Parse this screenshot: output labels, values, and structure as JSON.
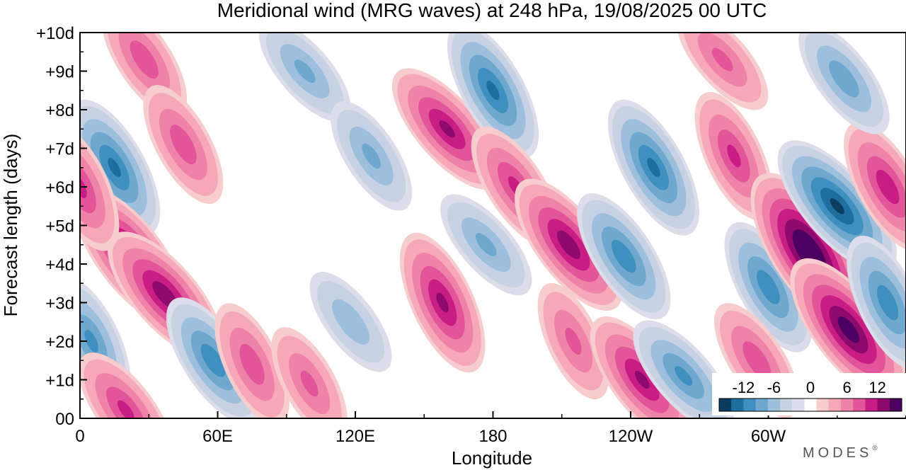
{
  "chart_data": {
    "type": "heatmap",
    "title": "Meridional wind (MRG waves) at  248 hPa,  19/08/2025  00 UTC",
    "xlabel": "Longitude",
    "ylabel": "Forecast length (days)",
    "x_ticks": [
      "0",
      "60E",
      "120E",
      "180",
      "120W",
      "60W"
    ],
    "x_tick_values": [
      0,
      60,
      120,
      180,
      240,
      300
    ],
    "xlim": [
      0,
      360
    ],
    "y_ticks": [
      "00",
      "+1d",
      "+2d",
      "+3d",
      "+4d",
      "+5d",
      "+6d",
      "+7d",
      "+8d",
      "+9d",
      "+10d"
    ],
    "ylim": [
      0,
      10
    ],
    "colorbar": {
      "labels": [
        "-12",
        "-6",
        "0",
        "6",
        "12"
      ],
      "levels": [
        -15,
        -12,
        -10,
        -8,
        -6,
        -4,
        -2,
        -1,
        1,
        2,
        4,
        6,
        8,
        10,
        12,
        15
      ],
      "colors": [
        "#0b3d5f",
        "#1f6e9e",
        "#3f8fbf",
        "#6fa8cf",
        "#9dbfdc",
        "#c6d2e4",
        "#dcdcea",
        "#ffffff",
        "#f7cccc",
        "#f6a8b8",
        "#ee82a8",
        "#e3559a",
        "#c81e84",
        "#8e0a6e",
        "#4b0060"
      ]
    },
    "anomalies": [
      {
        "lon": 5,
        "day": 2.0,
        "value": -8
      },
      {
        "lon": 15,
        "day": 6.5,
        "value": -10
      },
      {
        "lon": 28,
        "day": 9.3,
        "value": 7
      },
      {
        "lon": 22,
        "day": 4.2,
        "value": 12
      },
      {
        "lon": 37,
        "day": 3.2,
        "value": 11
      },
      {
        "lon": 0,
        "day": 6.0,
        "value": 8
      },
      {
        "lon": 45,
        "day": 7.1,
        "value": 7
      },
      {
        "lon": 58,
        "day": 1.5,
        "value": -9
      },
      {
        "lon": 20,
        "day": 0.2,
        "value": 8
      },
      {
        "lon": 98,
        "day": 9.0,
        "value": -6
      },
      {
        "lon": 75,
        "day": 1.4,
        "value": 7
      },
      {
        "lon": 100,
        "day": 0.9,
        "value": 6
      },
      {
        "lon": 127,
        "day": 6.8,
        "value": -6
      },
      {
        "lon": 118,
        "day": 2.5,
        "value": -5
      },
      {
        "lon": 160,
        "day": 7.5,
        "value": 10
      },
      {
        "lon": 158,
        "day": 3.0,
        "value": 10
      },
      {
        "lon": 180,
        "day": 8.5,
        "value": -10
      },
      {
        "lon": 190,
        "day": 6.0,
        "value": 8
      },
      {
        "lon": 213,
        "day": 4.5,
        "value": 11
      },
      {
        "lon": 177,
        "day": 4.5,
        "value": -6
      },
      {
        "lon": 215,
        "day": 2.0,
        "value": 6
      },
      {
        "lon": 250,
        "day": 6.5,
        "value": -10
      },
      {
        "lon": 237,
        "day": 4.2,
        "value": -9
      },
      {
        "lon": 245,
        "day": 1.0,
        "value": 10
      },
      {
        "lon": 263,
        "day": 1.1,
        "value": -8
      },
      {
        "lon": 285,
        "day": 6.8,
        "value": 8
      },
      {
        "lon": 300,
        "day": 3.4,
        "value": -9
      },
      {
        "lon": 318,
        "day": 4.3,
        "value": 15
      },
      {
        "lon": 335,
        "day": 2.3,
        "value": 13
      },
      {
        "lon": 330,
        "day": 5.5,
        "value": -12
      },
      {
        "lon": 352,
        "day": 3.0,
        "value": -9
      },
      {
        "lon": 352,
        "day": 6.0,
        "value": 9
      },
      {
        "lon": 295,
        "day": 1.5,
        "value": 7
      },
      {
        "lon": 333,
        "day": 8.8,
        "value": -7
      },
      {
        "lon": 280,
        "day": 9.3,
        "value": 6
      }
    ]
  },
  "branding": {
    "logo_text": "MODES",
    "logo_mark": "®"
  }
}
